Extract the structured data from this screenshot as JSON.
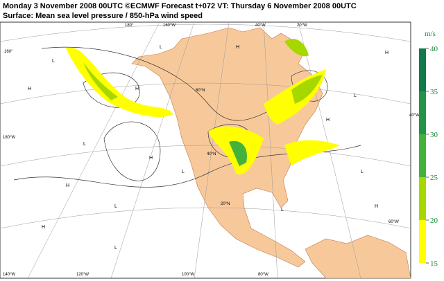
{
  "header": {
    "line1": "Monday 3 November 2008 00UTC ©ECMWF Forecast t+072 VT: Thursday 6 November 2008 00UTC",
    "line2": "Surface: Mean sea level pressure / 850-hPa wind speed"
  },
  "colorbar": {
    "unit": "m/s",
    "range": [
      15,
      40
    ],
    "ticks": [
      15,
      20,
      25,
      30,
      35,
      40
    ],
    "colors": [
      "#ffff00",
      "#a6d800",
      "#44b23a",
      "#22944a",
      "#127a4a"
    ]
  },
  "geo_labels": [
    "180°",
    "160°W",
    "40°W",
    "20°W",
    "160°",
    "180°W",
    "140°W",
    "120°W",
    "100°W",
    "80°W",
    "60°N",
    "40°N",
    "20°N",
    "60°W",
    "40°W"
  ],
  "pressure_centers": [
    "H",
    "L",
    "H",
    "L",
    "H",
    "L",
    "H",
    "H",
    "L",
    "H",
    "L",
    "H",
    "L",
    "L",
    "H",
    "L",
    "H",
    "L"
  ]
}
